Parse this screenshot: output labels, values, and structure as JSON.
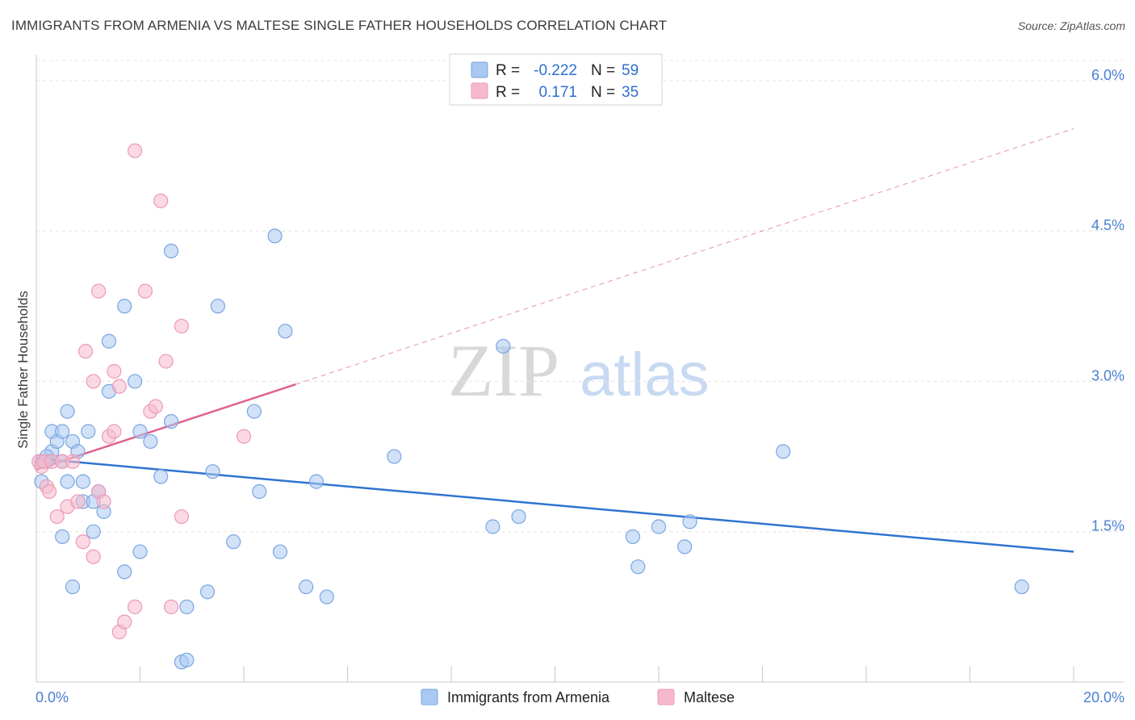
{
  "title": "IMMIGRANTS FROM ARMENIA VS MALTESE SINGLE FATHER HOUSEHOLDS CORRELATION CHART",
  "source": "Source: ZipAtlas.com",
  "watermark": {
    "zip": "ZIP",
    "atlas": "atlas"
  },
  "colors": {
    "blue_fill": "#a9c8f2",
    "blue_stroke": "#7aa6e0",
    "blue_line": "#2f74d0",
    "pink_fill": "#f6b9cc",
    "pink_stroke": "#ee9ab5",
    "pink_line": "#e0628d",
    "tick_text": "#4a7fd0"
  },
  "legend": {
    "rows": [
      {
        "r_label": "R =",
        "r_value": "-0.222",
        "n_label": "N =",
        "n_value": "59"
      },
      {
        "r_label": "R =",
        "r_value": "0.171",
        "n_label": "N =",
        "n_value": "35"
      }
    ]
  },
  "bottom_legend": [
    "Immigrants from Armenia",
    "Maltese"
  ],
  "chart_data": {
    "type": "scatter",
    "ylabel": "Single Father Households",
    "xlabel": "",
    "xlim": [
      0,
      20
    ],
    "ylim": [
      0,
      6.2
    ],
    "x_tick_labels": [
      "0.0%",
      "20.0%"
    ],
    "y_ticks": [
      1.5,
      3.0,
      4.5,
      6.0
    ],
    "y_tick_labels": [
      "1.5%",
      "3.0%",
      "4.5%",
      "6.0%"
    ],
    "grid": "horizontal dashed",
    "legend_position": "top-center",
    "series": [
      {
        "name": "Immigrants from Armenia",
        "color": "blue",
        "points": [
          [
            0.1,
            2.0
          ],
          [
            0.1,
            2.2
          ],
          [
            0.2,
            2.2
          ],
          [
            0.3,
            2.5
          ],
          [
            0.3,
            2.3
          ],
          [
            0.4,
            2.4
          ],
          [
            0.5,
            2.2
          ],
          [
            0.5,
            2.5
          ],
          [
            0.6,
            2.7
          ],
          [
            0.7,
            2.4
          ],
          [
            0.8,
            2.3
          ],
          [
            0.9,
            1.8
          ],
          [
            0.9,
            2.0
          ],
          [
            1.0,
            2.5
          ],
          [
            1.1,
            1.8
          ],
          [
            1.2,
            1.9
          ],
          [
            1.3,
            1.7
          ],
          [
            1.4,
            3.4
          ],
          [
            1.4,
            2.9
          ],
          [
            1.7,
            3.75
          ],
          [
            1.7,
            1.1
          ],
          [
            1.9,
            3.0
          ],
          [
            2.0,
            2.5
          ],
          [
            2.0,
            1.3
          ],
          [
            2.2,
            2.4
          ],
          [
            2.4,
            2.05
          ],
          [
            2.6,
            2.6
          ],
          [
            2.6,
            4.3
          ],
          [
            2.8,
            0.2
          ],
          [
            2.9,
            0.75
          ],
          [
            2.9,
            0.22
          ],
          [
            3.3,
            0.9
          ],
          [
            3.4,
            2.1
          ],
          [
            3.5,
            3.75
          ],
          [
            3.8,
            1.4
          ],
          [
            4.2,
            2.7
          ],
          [
            4.3,
            1.9
          ],
          [
            4.6,
            4.45
          ],
          [
            4.7,
            1.3
          ],
          [
            4.8,
            3.5
          ],
          [
            5.2,
            0.95
          ],
          [
            5.4,
            2.0
          ],
          [
            5.6,
            0.85
          ],
          [
            6.9,
            2.25
          ],
          [
            8.8,
            1.55
          ],
          [
            9.0,
            3.35
          ],
          [
            9.3,
            1.65
          ],
          [
            11.5,
            1.45
          ],
          [
            11.6,
            1.15
          ],
          [
            12.0,
            1.55
          ],
          [
            12.5,
            1.35
          ],
          [
            12.6,
            1.6
          ],
          [
            14.4,
            2.3
          ],
          [
            19.0,
            0.95
          ],
          [
            0.2,
            2.25
          ],
          [
            0.5,
            1.45
          ],
          [
            0.7,
            0.95
          ],
          [
            1.1,
            1.5
          ],
          [
            0.6,
            2.0
          ]
        ]
      },
      {
        "name": "Maltese",
        "color": "pink",
        "points": [
          [
            0.05,
            2.2
          ],
          [
            0.1,
            2.15
          ],
          [
            0.15,
            2.2
          ],
          [
            0.2,
            1.95
          ],
          [
            0.25,
            1.9
          ],
          [
            0.3,
            2.2
          ],
          [
            0.4,
            1.65
          ],
          [
            0.5,
            2.2
          ],
          [
            0.6,
            1.75
          ],
          [
            0.7,
            2.2
          ],
          [
            0.8,
            1.8
          ],
          [
            0.9,
            1.4
          ],
          [
            0.95,
            3.3
          ],
          [
            1.1,
            3.0
          ],
          [
            1.1,
            1.25
          ],
          [
            1.2,
            3.9
          ],
          [
            1.2,
            1.9
          ],
          [
            1.3,
            1.8
          ],
          [
            1.4,
            2.45
          ],
          [
            1.5,
            2.5
          ],
          [
            1.5,
            3.1
          ],
          [
            1.6,
            2.95
          ],
          [
            1.6,
            0.5
          ],
          [
            1.7,
            0.6
          ],
          [
            1.9,
            5.3
          ],
          [
            1.9,
            0.75
          ],
          [
            2.1,
            3.9
          ],
          [
            2.2,
            2.7
          ],
          [
            2.3,
            2.75
          ],
          [
            2.4,
            4.8
          ],
          [
            2.5,
            3.2
          ],
          [
            2.6,
            0.75
          ],
          [
            2.8,
            1.65
          ],
          [
            2.8,
            3.55
          ],
          [
            4.0,
            2.45
          ]
        ]
      }
    ],
    "trendlines": [
      {
        "series": "Immigrants from Armenia",
        "x": [
          0,
          20
        ],
        "y": [
          2.23,
          1.3
        ],
        "style": "solid"
      },
      {
        "series": "Maltese",
        "x": [
          0,
          5.0
        ],
        "y": [
          2.12,
          2.97
        ],
        "style": "solid"
      },
      {
        "series": "Maltese",
        "x": [
          5.0,
          20
        ],
        "y": [
          2.97,
          5.52
        ],
        "style": "dashed"
      }
    ]
  }
}
